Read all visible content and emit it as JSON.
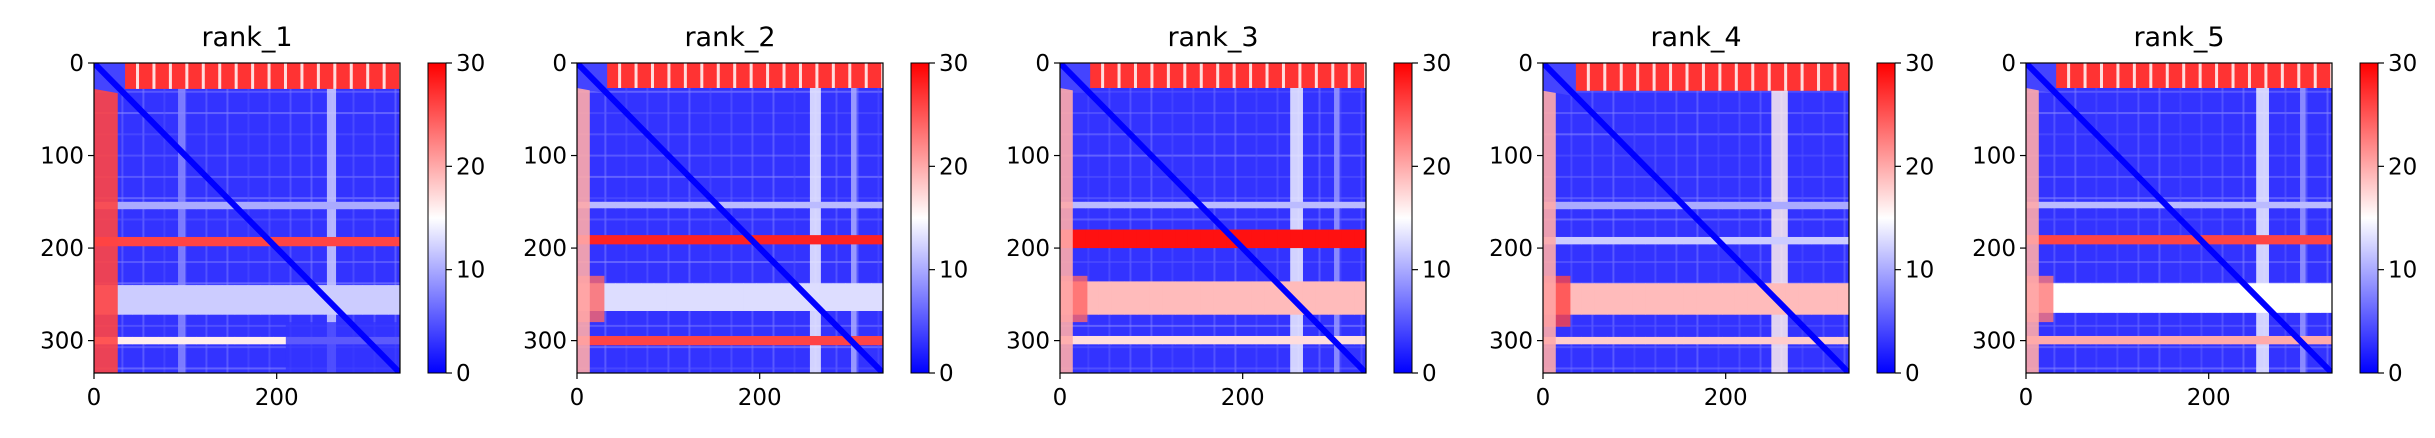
{
  "chart_data": [
    {
      "type": "heatmap",
      "title": "rank_1",
      "x_ticks": [
        0,
        200
      ],
      "y_ticks": [
        0,
        100,
        200,
        300
      ],
      "extent": [
        0,
        335
      ],
      "colorbar": {
        "ticks": [
          0,
          10,
          20,
          30
        ],
        "range": [
          0,
          30
        ],
        "colormap": "bwr"
      },
      "features": {
        "left_band": 26,
        "top_band": 28,
        "diag_width": 6,
        "rows": [
          {
            "y": [
              188,
              198
            ],
            "v": 23
          },
          {
            "y": [
              240,
              272
            ],
            "v": 13
          },
          {
            "y": [
              296,
              304
            ],
            "v": 17
          },
          {
            "y": [
              150,
              158
            ],
            "v": 10
          }
        ],
        "cols": [
          {
            "x": [
              255,
              265
            ],
            "v": 12
          },
          {
            "x": [
              92,
              100
            ],
            "v": 8
          }
        ],
        "blocks": [
          {
            "x": [
              210,
              335
            ],
            "y": [
              280,
              335
            ],
            "v": 3
          }
        ]
      }
    },
    {
      "type": "heatmap",
      "title": "rank_2",
      "x_ticks": [
        0,
        200
      ],
      "y_ticks": [
        0,
        100,
        200,
        300
      ],
      "extent": [
        0,
        335
      ],
      "colorbar": {
        "ticks": [
          0,
          10,
          20,
          30
        ],
        "range": [
          0,
          30
        ],
        "colormap": "bwr"
      },
      "features": {
        "left_band": 14,
        "top_band": 27,
        "diag_width": 6,
        "rows": [
          {
            "y": [
              186,
              196
            ],
            "v": 27
          },
          {
            "y": [
              238,
              268
            ],
            "v": 16
          },
          {
            "y": [
              295,
              305
            ],
            "v": 28
          },
          {
            "y": [
              150,
              157
            ],
            "v": 11
          }
        ],
        "cols": [
          {
            "x": [
              255,
              267
            ],
            "v": 14
          },
          {
            "x": [
              300,
              306
            ],
            "v": 10
          }
        ],
        "blocks": [
          {
            "x": [
              0,
              30
            ],
            "y": [
              230,
              280
            ],
            "v": 24
          }
        ]
      }
    },
    {
      "type": "heatmap",
      "title": "rank_3",
      "x_ticks": [
        0,
        200
      ],
      "y_ticks": [
        0,
        100,
        200,
        300
      ],
      "extent": [
        0,
        335
      ],
      "colorbar": {
        "ticks": [
          0,
          10,
          20,
          30
        ],
        "range": [
          0,
          30
        ],
        "colormap": "bwr"
      },
      "features": {
        "left_band": 14,
        "top_band": 27,
        "diag_width": 6,
        "rows": [
          {
            "y": [
              180,
              200
            ],
            "v": 27
          },
          {
            "y": [
              236,
              272
            ],
            "v": 17
          },
          {
            "y": [
              295,
              304
            ],
            "v": 19
          },
          {
            "y": [
              150,
              157
            ],
            "v": 11
          }
        ],
        "cols": [
          {
            "x": [
              252,
              266
            ],
            "v": 14
          },
          {
            "x": [
              300,
              306
            ],
            "v": 9
          }
        ],
        "blocks": [
          {
            "x": [
              0,
              30
            ],
            "y": [
              230,
              280
            ],
            "v": 24
          }
        ]
      }
    },
    {
      "type": "heatmap",
      "title": "rank_4",
      "x_ticks": [
        0,
        200
      ],
      "y_ticks": [
        0,
        100,
        200,
        300
      ],
      "extent": [
        0,
        335
      ],
      "colorbar": {
        "ticks": [
          0,
          10,
          20,
          30
        ],
        "range": [
          0,
          30
        ],
        "colormap": "bwr"
      },
      "features": {
        "left_band": 14,
        "top_band": 30,
        "diag_width": 6,
        "rows": [
          {
            "y": [
              238,
              272
            ],
            "v": 22
          },
          {
            "y": [
              296,
              304
            ],
            "v": 19
          },
          {
            "y": [
              150,
              158
            ],
            "v": 10
          },
          {
            "y": [
              188,
              196
            ],
            "v": 9
          }
        ],
        "cols": [
          {
            "x": [
              250,
              268
            ],
            "v": 16
          }
        ],
        "blocks": [
          {
            "x": [
              0,
              30
            ],
            "y": [
              230,
              285
            ],
            "v": 26
          }
        ]
      }
    },
    {
      "type": "heatmap",
      "title": "rank_5",
      "x_ticks": [
        0,
        200
      ],
      "y_ticks": [
        0,
        100,
        200,
        300
      ],
      "extent": [
        0,
        335
      ],
      "colorbar": {
        "ticks": [
          0,
          10,
          20,
          30
        ],
        "range": [
          0,
          30
        ],
        "colormap": "bwr"
      },
      "features": {
        "left_band": 14,
        "top_band": 27,
        "diag_width": 6,
        "rows": [
          {
            "y": [
              186,
              196
            ],
            "v": 25
          },
          {
            "y": [
              238,
              270
            ],
            "v": 18
          },
          {
            "y": [
              295,
              304
            ],
            "v": 22
          },
          {
            "y": [
              150,
              157
            ],
            "v": 11
          }
        ],
        "cols": [
          {
            "x": [
              252,
              266
            ],
            "v": 14
          },
          {
            "x": [
              300,
              306
            ],
            "v": 9
          }
        ],
        "blocks": [
          {
            "x": [
              0,
              30
            ],
            "y": [
              230,
              280
            ],
            "v": 23
          }
        ]
      }
    }
  ]
}
